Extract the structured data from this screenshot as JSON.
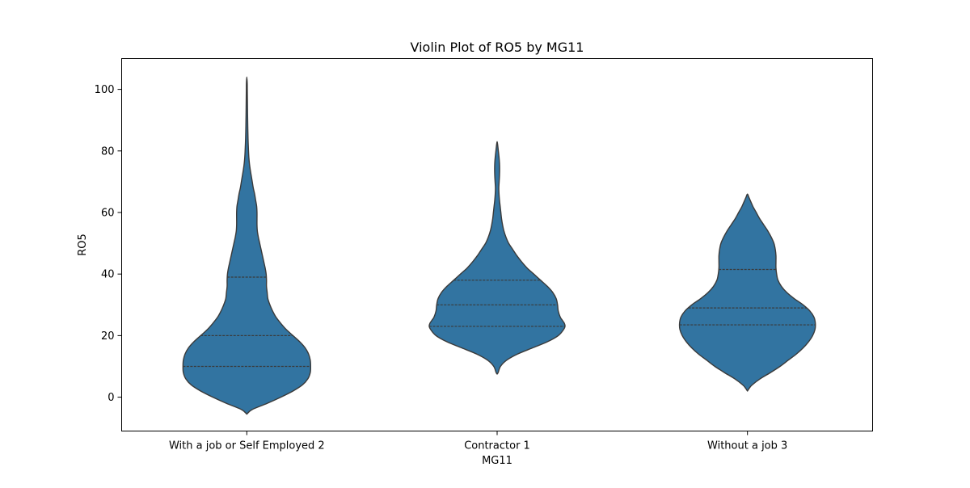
{
  "chart_data": {
    "type": "violin",
    "title": "Violin Plot of RO5 by MG11",
    "xlabel": "MG11",
    "ylabel": "RO5",
    "ylim": [
      -11,
      110
    ],
    "yticks": [
      0,
      20,
      40,
      60,
      80,
      100
    ],
    "ytick_labels": [
      "0",
      "20",
      "40",
      "60",
      "80",
      "100"
    ],
    "grid": false,
    "color": "#3274a1",
    "edge_color": "#3a3a3a",
    "categories": [
      "With a job or Self Employed 2",
      "Contractor 1",
      "Without a job 3"
    ],
    "violins": [
      {
        "category": "With a job or Self Employed 2",
        "range": [
          -5.5,
          104
        ],
        "quartiles": [
          10,
          20,
          39
        ],
        "profile": [
          [
            -5.5,
            0
          ],
          [
            -4,
            0.08
          ],
          [
            -2,
            0.3
          ],
          [
            0,
            0.5
          ],
          [
            2,
            0.68
          ],
          [
            4,
            0.82
          ],
          [
            6,
            0.9
          ],
          [
            8,
            0.935
          ],
          [
            10,
            0.94
          ],
          [
            12,
            0.935
          ],
          [
            14,
            0.91
          ],
          [
            16,
            0.86
          ],
          [
            18,
            0.78
          ],
          [
            20,
            0.68
          ],
          [
            22,
            0.58
          ],
          [
            24,
            0.5
          ],
          [
            26,
            0.43
          ],
          [
            28,
            0.38
          ],
          [
            30,
            0.34
          ],
          [
            32,
            0.31
          ],
          [
            34,
            0.3
          ],
          [
            36,
            0.29
          ],
          [
            38,
            0.29
          ],
          [
            40,
            0.285
          ],
          [
            42,
            0.27
          ],
          [
            44,
            0.25
          ],
          [
            46,
            0.23
          ],
          [
            48,
            0.21
          ],
          [
            50,
            0.19
          ],
          [
            52,
            0.17
          ],
          [
            54,
            0.155
          ],
          [
            56,
            0.15
          ],
          [
            58,
            0.15
          ],
          [
            60,
            0.15
          ],
          [
            62,
            0.145
          ],
          [
            64,
            0.13
          ],
          [
            66,
            0.115
          ],
          [
            68,
            0.095
          ],
          [
            70,
            0.08
          ],
          [
            72,
            0.065
          ],
          [
            74,
            0.05
          ],
          [
            76,
            0.038
          ],
          [
            78,
            0.03
          ],
          [
            80,
            0.025
          ],
          [
            84,
            0.018
          ],
          [
            88,
            0.014
          ],
          [
            92,
            0.011
          ],
          [
            96,
            0.009
          ],
          [
            100,
            0.007
          ],
          [
            102,
            0.006
          ],
          [
            104,
            0
          ]
        ]
      },
      {
        "category": "Contractor 1",
        "range": [
          7.5,
          83
        ],
        "quartiles": [
          23,
          30,
          38
        ],
        "profile": [
          [
            7.5,
            0
          ],
          [
            8,
            0.015
          ],
          [
            10,
            0.05
          ],
          [
            12,
            0.14
          ],
          [
            14,
            0.3
          ],
          [
            16,
            0.52
          ],
          [
            18,
            0.74
          ],
          [
            20,
            0.9
          ],
          [
            22,
            0.98
          ],
          [
            23,
            1.0
          ],
          [
            24,
            0.99
          ],
          [
            25,
            0.96
          ],
          [
            26,
            0.93
          ],
          [
            28,
            0.9
          ],
          [
            30,
            0.89
          ],
          [
            32,
            0.87
          ],
          [
            34,
            0.82
          ],
          [
            36,
            0.74
          ],
          [
            38,
            0.64
          ],
          [
            40,
            0.54
          ],
          [
            42,
            0.44
          ],
          [
            44,
            0.36
          ],
          [
            46,
            0.29
          ],
          [
            48,
            0.23
          ],
          [
            50,
            0.17
          ],
          [
            52,
            0.13
          ],
          [
            54,
            0.1
          ],
          [
            56,
            0.08
          ],
          [
            58,
            0.065
          ],
          [
            60,
            0.055
          ],
          [
            62,
            0.045
          ],
          [
            64,
            0.035
          ],
          [
            66,
            0.028
          ],
          [
            68,
            0.025
          ],
          [
            70,
            0.03
          ],
          [
            72,
            0.035
          ],
          [
            74,
            0.037
          ],
          [
            76,
            0.035
          ],
          [
            78,
            0.028
          ],
          [
            80,
            0.018
          ],
          [
            82,
            0.008
          ],
          [
            83,
            0
          ]
        ]
      },
      {
        "category": "Without a job 3",
        "range": [
          2,
          66
        ],
        "quartiles": [
          23.5,
          29,
          41.5
        ],
        "profile": [
          [
            2,
            0
          ],
          [
            3,
            0.03
          ],
          [
            4,
            0.07
          ],
          [
            6,
            0.19
          ],
          [
            8,
            0.34
          ],
          [
            10,
            0.48
          ],
          [
            12,
            0.6
          ],
          [
            14,
            0.72
          ],
          [
            16,
            0.82
          ],
          [
            18,
            0.9
          ],
          [
            20,
            0.96
          ],
          [
            22,
            0.995
          ],
          [
            24,
            1.0
          ],
          [
            26,
            0.98
          ],
          [
            28,
            0.92
          ],
          [
            30,
            0.82
          ],
          [
            32,
            0.69
          ],
          [
            34,
            0.58
          ],
          [
            36,
            0.5
          ],
          [
            38,
            0.45
          ],
          [
            40,
            0.43
          ],
          [
            42,
            0.42
          ],
          [
            44,
            0.42
          ],
          [
            46,
            0.42
          ],
          [
            48,
            0.41
          ],
          [
            50,
            0.39
          ],
          [
            52,
            0.35
          ],
          [
            54,
            0.3
          ],
          [
            56,
            0.24
          ],
          [
            58,
            0.18
          ],
          [
            60,
            0.13
          ],
          [
            62,
            0.08
          ],
          [
            64,
            0.04
          ],
          [
            65,
            0.02
          ],
          [
            66,
            0
          ]
        ]
      }
    ]
  }
}
